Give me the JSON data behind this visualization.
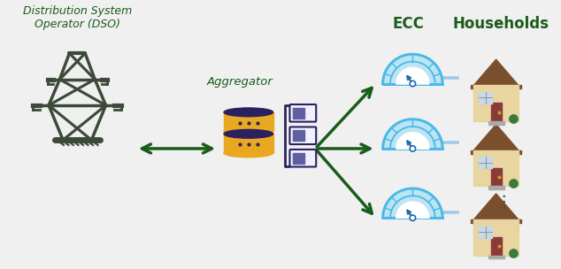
{
  "background_color": "#f0f0f0",
  "text_DSO": "Distribution System\nOperator (DSO)",
  "text_aggregator": "Aggregator",
  "text_ECC": "ECC",
  "text_Households": "Households",
  "arrow_color": "#1a5c1a",
  "tower_color": "#3d4a3a",
  "gauge_outer_color": "#4ab8e8",
  "gauge_fill_color": "#a8dff5",
  "gauge_inner_color": "white",
  "gauge_needle_color": "#1a6aaa",
  "gauge_dot_color": "#1a6aaa",
  "gauge_line_color": "#4ab8e8",
  "house_roof_color": "#7a4f2e",
  "house_wall_color": "#e8d5a0",
  "house_door_color": "#8b3a3a",
  "house_window_color": "#c8d8e8",
  "house_window_edge": "#888888",
  "house_step_color": "#aaaaaa",
  "house_bush_color": "#3a7a3a",
  "db_top_color": "#2d2060",
  "db_body_color": "#e8a820",
  "db_dot_color": "#2d2060",
  "rack_border_color": "#2d2060",
  "rack_fill_color": "#f0f0ff",
  "rack_inner_color": "#6060a0",
  "label_color": "#1a5c1a",
  "dots_color": "#2d5a2d",
  "connector_color": "#a0c8e8",
  "figsize": [
    6.34,
    3.04
  ],
  "dpi": 100
}
